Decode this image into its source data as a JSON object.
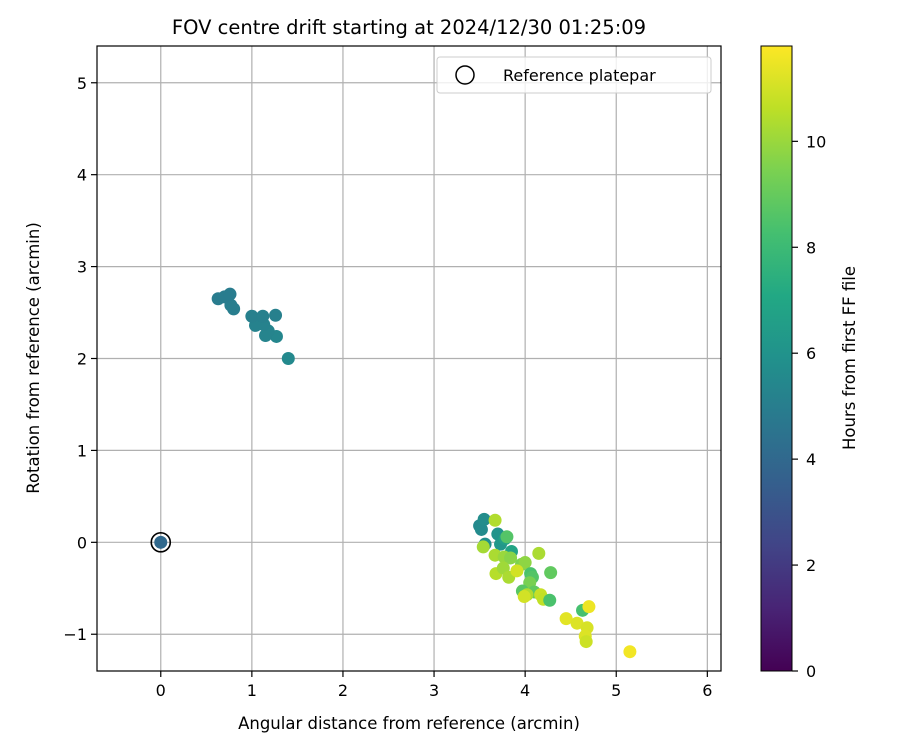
{
  "chart_data": {
    "type": "scatter",
    "title": "FOV centre drift starting at 2024/12/30 01:25:09",
    "xlabel": "Angular distance from reference (arcmin)",
    "ylabel": "Rotation from reference (arcmin)",
    "xlim": [
      -0.7,
      6.15
    ],
    "ylim": [
      -1.4,
      5.4
    ],
    "x_ticks": [
      0,
      1,
      2,
      3,
      4,
      5,
      6
    ],
    "y_ticks": [
      -1,
      0,
      1,
      2,
      3,
      4,
      5
    ],
    "x_tick_labels": [
      "0",
      "1",
      "2",
      "3",
      "4",
      "5",
      "6"
    ],
    "y_tick_labels": [
      "−1",
      "0",
      "1",
      "2",
      "3",
      "4",
      "5"
    ],
    "grid": true,
    "colorscale": "viridis",
    "colorbar": {
      "label": "Hours from first FF file",
      "range": [
        0,
        11.8
      ],
      "ticks": [
        0,
        2,
        4,
        6,
        8,
        10
      ],
      "tick_labels": [
        "0",
        "2",
        "4",
        "6",
        "8",
        "10"
      ]
    },
    "legend": {
      "position": "upper right",
      "entries": [
        {
          "label": "Reference platepar",
          "marker": "open-circle"
        }
      ]
    },
    "reference_point": {
      "x": 0,
      "y": 0
    },
    "points": [
      {
        "x": 0.0,
        "y": 0.0,
        "hours": 4.0
      },
      {
        "x": 1.4,
        "y": 2.0,
        "hours": 5.5
      },
      {
        "x": 1.27,
        "y": 2.24,
        "hours": 5.4
      },
      {
        "x": 1.15,
        "y": 2.25,
        "hours": 5.3
      },
      {
        "x": 1.18,
        "y": 2.3,
        "hours": 5.3
      },
      {
        "x": 1.04,
        "y": 2.36,
        "hours": 5.2
      },
      {
        "x": 1.13,
        "y": 2.37,
        "hours": 5.2
      },
      {
        "x": 1.0,
        "y": 2.46,
        "hours": 5.1
      },
      {
        "x": 1.12,
        "y": 2.46,
        "hours": 5.1
      },
      {
        "x": 1.26,
        "y": 2.47,
        "hours": 5.1
      },
      {
        "x": 0.8,
        "y": 2.54,
        "hours": 5.0
      },
      {
        "x": 0.77,
        "y": 2.58,
        "hours": 5.0
      },
      {
        "x": 0.63,
        "y": 2.65,
        "hours": 4.9
      },
      {
        "x": 0.7,
        "y": 2.67,
        "hours": 4.9
      },
      {
        "x": 0.76,
        "y": 2.7,
        "hours": 4.9
      },
      {
        "x": 3.5,
        "y": 0.18,
        "hours": 5.5
      },
      {
        "x": 3.52,
        "y": 0.14,
        "hours": 5.6
      },
      {
        "x": 3.55,
        "y": 0.25,
        "hours": 5.7
      },
      {
        "x": 3.56,
        "y": -0.02,
        "hours": 5.8
      },
      {
        "x": 3.7,
        "y": 0.09,
        "hours": 6.0
      },
      {
        "x": 3.73,
        "y": -0.02,
        "hours": 6.2
      },
      {
        "x": 3.78,
        "y": 0.04,
        "hours": 6.6
      },
      {
        "x": 3.85,
        "y": -0.1,
        "hours": 6.9
      },
      {
        "x": 3.8,
        "y": 0.06,
        "hours": 8.6
      },
      {
        "x": 3.67,
        "y": 0.24,
        "hours": 10.4
      },
      {
        "x": 3.54,
        "y": -0.05,
        "hours": 10.2
      },
      {
        "x": 3.67,
        "y": -0.14,
        "hours": 10.3
      },
      {
        "x": 3.77,
        "y": -0.16,
        "hours": 10.0
      },
      {
        "x": 3.84,
        "y": -0.17,
        "hours": 9.7
      },
      {
        "x": 3.96,
        "y": -0.24,
        "hours": 9.5
      },
      {
        "x": 4.0,
        "y": -0.22,
        "hours": 9.8
      },
      {
        "x": 3.68,
        "y": -0.34,
        "hours": 10.5
      },
      {
        "x": 3.76,
        "y": -0.28,
        "hours": 10.1
      },
      {
        "x": 3.82,
        "y": -0.38,
        "hours": 10.3
      },
      {
        "x": 3.91,
        "y": -0.31,
        "hours": 11.0
      },
      {
        "x": 4.06,
        "y": -0.34,
        "hours": 8.4
      },
      {
        "x": 4.08,
        "y": -0.38,
        "hours": 8.6
      },
      {
        "x": 4.05,
        "y": -0.44,
        "hours": 9.4
      },
      {
        "x": 4.28,
        "y": -0.33,
        "hours": 8.9
      },
      {
        "x": 4.15,
        "y": -0.12,
        "hours": 10.3
      },
      {
        "x": 3.97,
        "y": -0.53,
        "hours": 8.7
      },
      {
        "x": 4.1,
        "y": -0.54,
        "hours": 8.9
      },
      {
        "x": 4.02,
        "y": -0.57,
        "hours": 10.4
      },
      {
        "x": 3.99,
        "y": -0.59,
        "hours": 11.0
      },
      {
        "x": 4.17,
        "y": -0.57,
        "hours": 10.8
      },
      {
        "x": 4.2,
        "y": -0.62,
        "hours": 10.7
      },
      {
        "x": 4.27,
        "y": -0.63,
        "hours": 8.4
      },
      {
        "x": 4.63,
        "y": -0.74,
        "hours": 8.3
      },
      {
        "x": 4.7,
        "y": -0.7,
        "hours": 11.5
      },
      {
        "x": 4.45,
        "y": -0.83,
        "hours": 11.3
      },
      {
        "x": 4.57,
        "y": -0.88,
        "hours": 11.2
      },
      {
        "x": 4.68,
        "y": -0.93,
        "hours": 11.1
      },
      {
        "x": 4.66,
        "y": -1.02,
        "hours": 11.2
      },
      {
        "x": 4.67,
        "y": -1.08,
        "hours": 10.9
      },
      {
        "x": 5.15,
        "y": -1.19,
        "hours": 11.6
      }
    ]
  }
}
